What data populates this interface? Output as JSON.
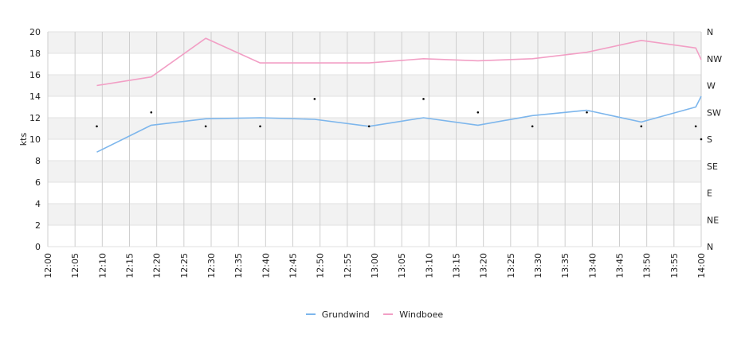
{
  "chart_data": {
    "type": "line",
    "ylabel": "kts",
    "ylim": [
      0,
      20
    ],
    "yticks": [
      "0",
      "2",
      "4",
      "6",
      "8",
      "10",
      "12",
      "14",
      "16",
      "18",
      "20"
    ],
    "direction_ticks": [
      "N",
      "NE",
      "E",
      "SE",
      "S",
      "SW",
      "W",
      "NW",
      "N"
    ],
    "xticks": [
      "12:00",
      "12:05",
      "12:10",
      "12:15",
      "12:20",
      "12:25",
      "12:30",
      "12:35",
      "12:40",
      "12:45",
      "12:50",
      "12:55",
      "13:00",
      "13:05",
      "13:10",
      "13:15",
      "13:20",
      "13:25",
      "13:30",
      "13:35",
      "13:40",
      "13:45",
      "13:50",
      "13:55",
      "14:00"
    ],
    "series": [
      {
        "name": "Grundwind",
        "color": "#7db6ec",
        "x": [
          "12:09",
          "12:19",
          "12:29",
          "12:39",
          "12:49",
          "12:59",
          "13:09",
          "13:19",
          "13:29",
          "13:39",
          "13:49",
          "13:59",
          "14:00"
        ],
        "values": [
          8.8,
          11.3,
          11.9,
          12.0,
          11.85,
          11.2,
          12.0,
          11.3,
          12.2,
          12.7,
          11.6,
          13.0,
          14.0
        ]
      },
      {
        "name": "Windboee",
        "color": "#f29fc5",
        "x": [
          "12:09",
          "12:19",
          "12:29",
          "12:39",
          "12:49",
          "12:59",
          "13:09",
          "13:19",
          "13:29",
          "13:39",
          "13:49",
          "13:59",
          "14:00"
        ],
        "values": [
          15.0,
          15.8,
          19.4,
          17.1,
          17.1,
          17.1,
          17.5,
          17.3,
          17.5,
          18.1,
          19.2,
          18.5,
          17.4
        ]
      }
    ],
    "direction_points": {
      "x": [
        "12:09",
        "12:19",
        "12:29",
        "12:39",
        "12:49",
        "12:59",
        "13:09",
        "13:19",
        "13:29",
        "13:39",
        "13:49",
        "13:59",
        "14:00"
      ],
      "values": [
        11.2,
        12.5,
        11.2,
        11.2,
        13.75,
        11.2,
        13.75,
        12.5,
        11.2,
        12.5,
        11.2,
        11.2,
        10.0
      ]
    },
    "grid": true,
    "legend": "bottom-center"
  }
}
